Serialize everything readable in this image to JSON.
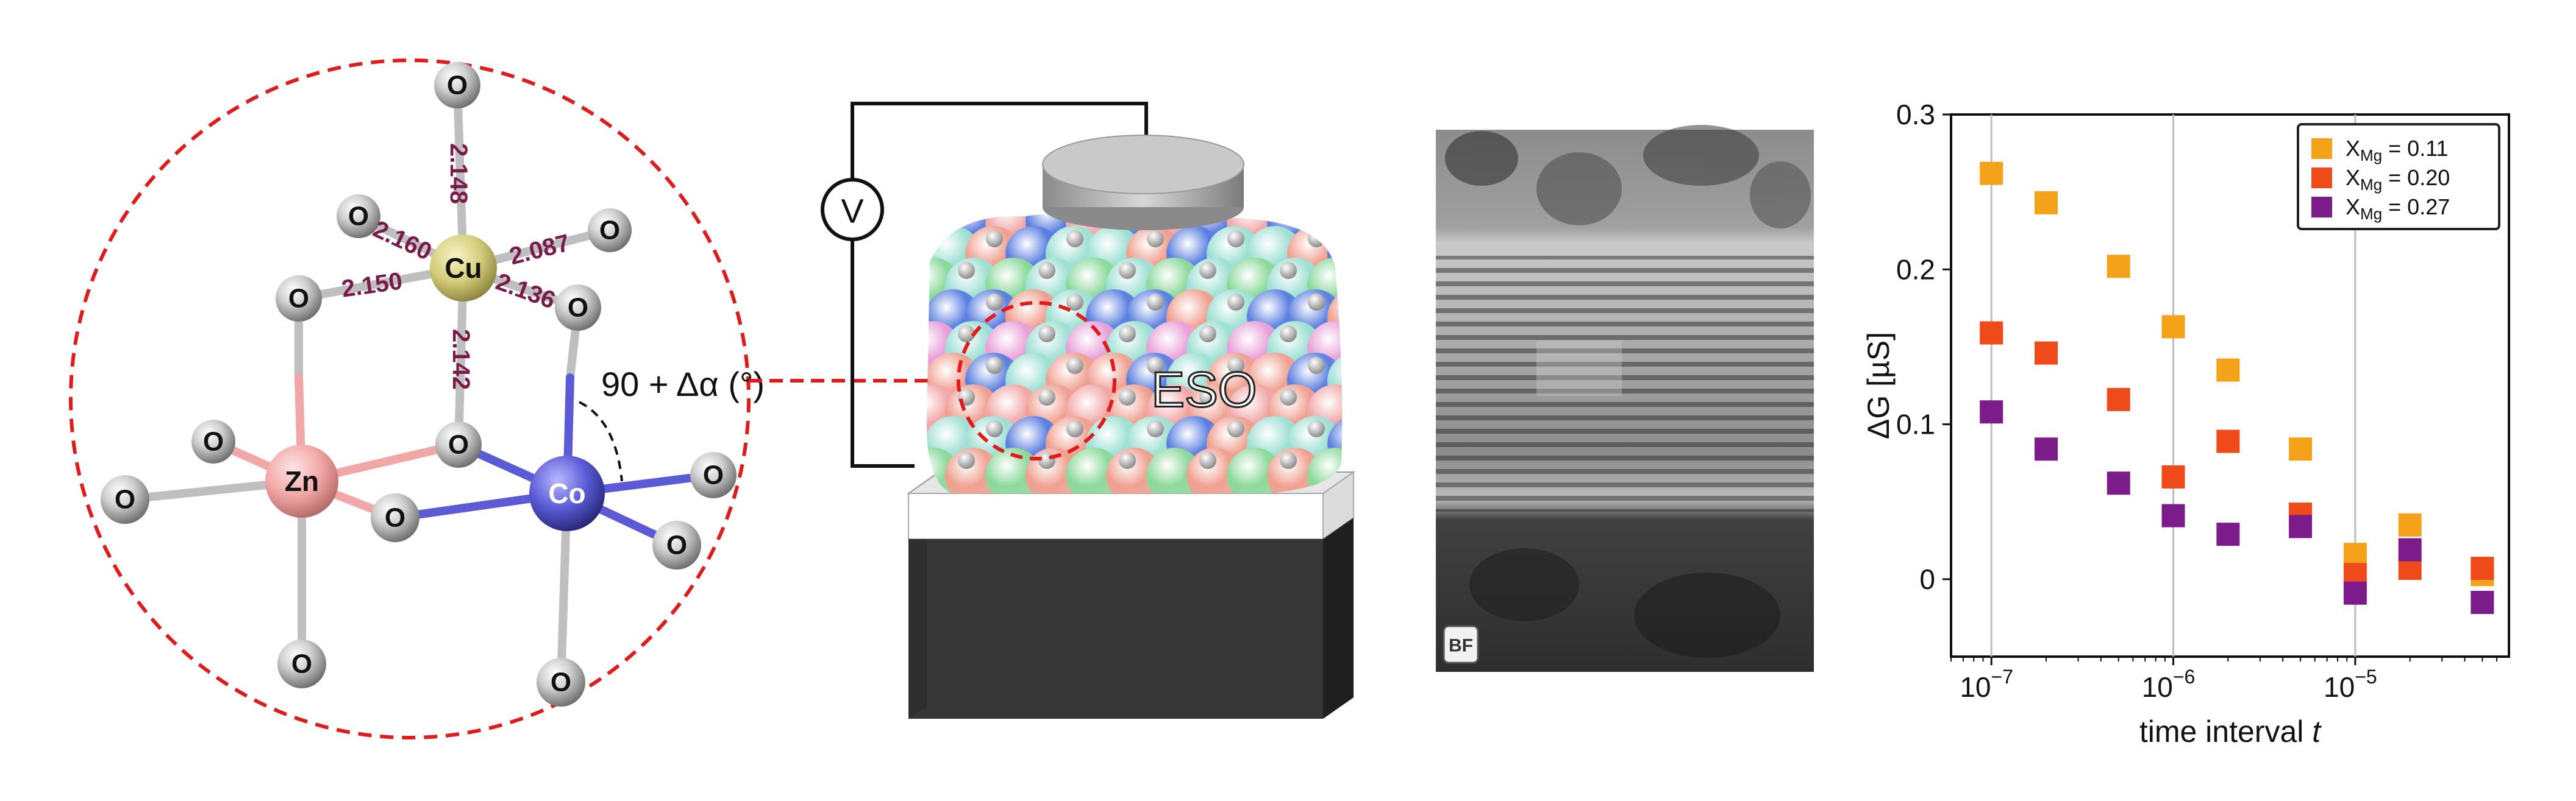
{
  "panel_a": {
    "center_atoms": [
      {
        "label": "Cu",
        "color": "#d4cd7a"
      },
      {
        "label": "Zn",
        "color": "#f2a7a7"
      },
      {
        "label": "Co",
        "color": "#5b5bd6"
      }
    ],
    "oxygen_label": "O",
    "bond_lengths": [
      "2.148",
      "2.160",
      "2.087",
      "2.150",
      "2.136",
      "2.142"
    ],
    "angle_label": "90 + Δα (°)",
    "border_color": "#e01b1b"
  },
  "panel_b": {
    "voltmeter_label": "V",
    "material_label": "ESO",
    "sphere_colors": [
      "#f2a7a7",
      "#9ee0d4",
      "#8bd99a",
      "#5b7fe0",
      "#e8a0d8",
      "#f0a090"
    ]
  },
  "panel_c": {
    "scale_icon": "bf-mode-icon",
    "icon_label": "BF"
  },
  "chart_data": {
    "type": "scatter",
    "xscale": "log",
    "xlim": [
      6e-08,
      7e-05
    ],
    "ylim": [
      -0.05,
      0.3
    ],
    "xlabel": "time interval t",
    "ylabel": "ΔG [µS]",
    "xticks": [
      {
        "value": 1e-07,
        "base": "10",
        "exp": "−7"
      },
      {
        "value": 1e-06,
        "base": "10",
        "exp": "−6"
      },
      {
        "value": 1e-05,
        "base": "10",
        "exp": "−5"
      }
    ],
    "yticks": [
      {
        "value": 0,
        "label": "0"
      },
      {
        "value": 0.1,
        "label": "0.1"
      },
      {
        "value": 0.2,
        "label": "0.2"
      },
      {
        "value": 0.3,
        "label": "0.3"
      }
    ],
    "grid": "vertical-major",
    "legend_position": "top-right",
    "series": [
      {
        "name_prefix": "X",
        "name_sub": "Mg",
        "name_suffix": " = 0.11",
        "color": "#f5a21b",
        "x": [
          1e-07,
          2e-07,
          5e-07,
          1e-06,
          2e-06,
          5e-06,
          1e-05,
          2e-05,
          5e-05
        ],
        "y": [
          0.262,
          0.243,
          0.202,
          0.163,
          0.135,
          0.084,
          0.016,
          0.035,
          0.003
        ]
      },
      {
        "name_prefix": "X",
        "name_sub": "Mg",
        "name_suffix": " = 0.20",
        "color": "#ef4a1a",
        "x": [
          1e-07,
          2e-07,
          5e-07,
          1e-06,
          2e-06,
          5e-06,
          1e-05,
          2e-05,
          5e-05
        ],
        "y": [
          0.159,
          0.146,
          0.116,
          0.066,
          0.089,
          0.042,
          0.003,
          0.007,
          0.007
        ]
      },
      {
        "name_prefix": "X",
        "name_sub": "Mg",
        "name_suffix": " = 0.27",
        "color": "#7c1c8a",
        "x": [
          1e-07,
          2e-07,
          5e-07,
          1e-06,
          2e-06,
          5e-06,
          1e-05,
          2e-05,
          5e-05
        ],
        "y": [
          0.108,
          0.084,
          0.062,
          0.041,
          0.029,
          0.034,
          -0.009,
          0.019,
          -0.015
        ]
      }
    ]
  }
}
